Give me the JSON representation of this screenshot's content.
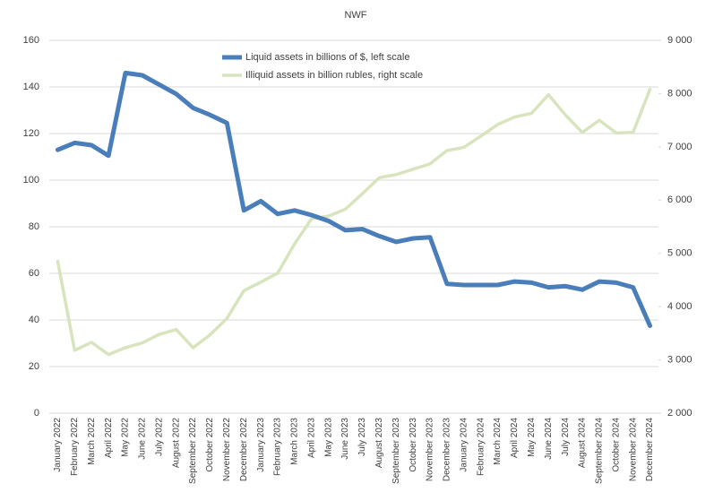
{
  "chart_data": {
    "type": "line",
    "title": "NWF",
    "categories": [
      "January 2022",
      "February 2022",
      "March 2022",
      "April 2022",
      "May 2022",
      "June 2022",
      "July 2022",
      "August 2022",
      "September 2022",
      "October 2022",
      "November 2022",
      "December 2022",
      "January 2023",
      "February 2023",
      "March 2023",
      "April 2023",
      "May 2023",
      "June 2023",
      "July 2023",
      "August 2023",
      "September 2023",
      "October 2023",
      "November 2023",
      "December 2023",
      "January 2024",
      "February 2024",
      "March 2024",
      "April 2024",
      "May 2024",
      "June 2024",
      "July 2024",
      "August 2024",
      "September 2024",
      "October 2024",
      "November 2024",
      "December 2024"
    ],
    "series": [
      {
        "name": "Liquid assets in billions of $, left scale",
        "color": "#4a7ebb",
        "values": [
          113,
          116,
          115,
          110.5,
          146,
          145,
          141,
          137,
          131,
          128,
          124.5,
          87,
          91,
          85.5,
          87,
          85,
          82.5,
          78.5,
          79,
          76,
          73.5,
          75,
          75.5,
          55.5,
          55,
          55,
          55,
          56.5,
          56,
          54,
          54.5,
          53,
          56.5,
          56,
          54,
          37.5
        ]
      },
      {
        "name": "Illiquid assets in billion rubles, right scale",
        "color": "#d7e4bd",
        "axis": "y2",
        "values": [
          4850,
          3180,
          3330,
          3100,
          3230,
          3320,
          3480,
          3570,
          3230,
          3470,
          3780,
          4300,
          4460,
          4630,
          5180,
          5650,
          5700,
          5830,
          6120,
          6420,
          6480,
          6580,
          6680,
          6930,
          6990,
          7200,
          7420,
          7560,
          7630,
          7980,
          7600,
          7270,
          7500,
          7260,
          7270,
          8080
        ]
      }
    ],
    "ylim": [
      0,
      160
    ],
    "yticks": [
      0,
      20,
      40,
      60,
      80,
      100,
      120,
      140,
      160
    ],
    "y2lim": [
      2000,
      9000
    ],
    "y2ticks": [
      {
        "value": 2000,
        "label": "2 000"
      },
      {
        "value": 3000,
        "label": "3 000"
      },
      {
        "value": 4000,
        "label": "4 000"
      },
      {
        "value": 5000,
        "label": "5 000"
      },
      {
        "value": 6000,
        "label": "6 000"
      },
      {
        "value": 7000,
        "label": "7 000"
      },
      {
        "value": 8000,
        "label": "8 000"
      },
      {
        "value": 9000,
        "label": "9 000"
      }
    ],
    "grid": true
  }
}
